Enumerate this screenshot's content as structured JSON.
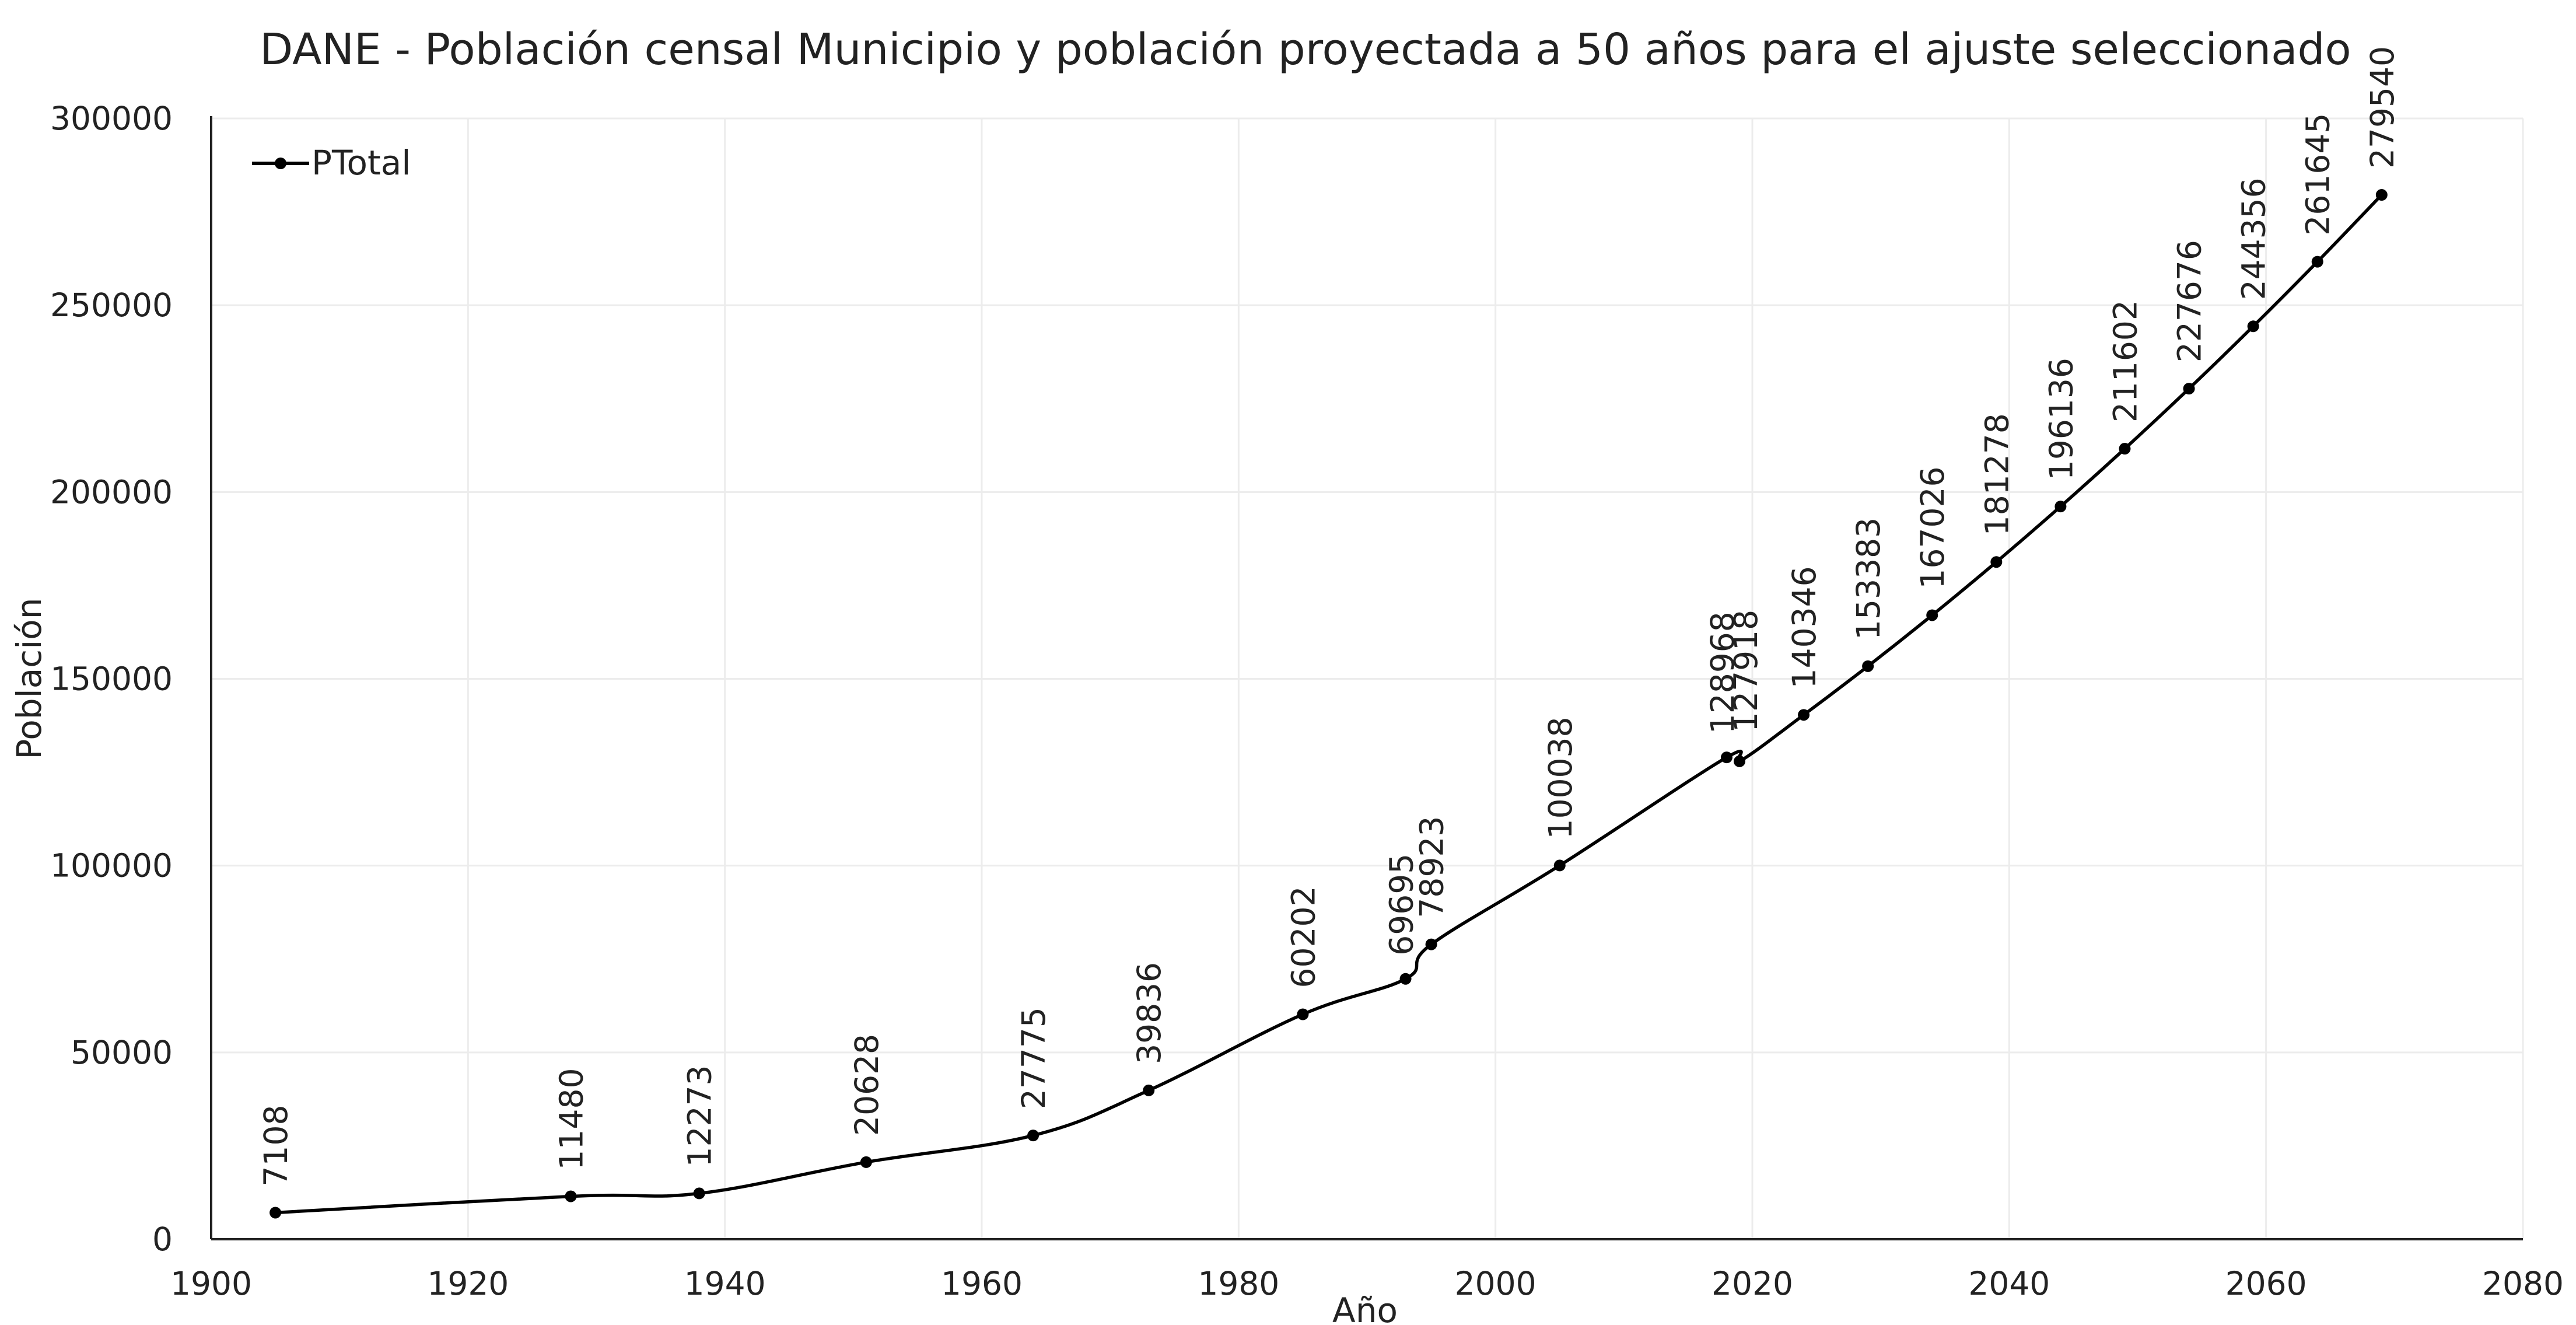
{
  "chart_data": {
    "type": "line",
    "title": "DANE - Población censal Municipio y población proyectada a 50 años para el ajuste seleccionado",
    "xlabel": "Año",
    "ylabel": "Población",
    "xlim": [
      1900,
      2080
    ],
    "ylim": [
      0,
      300000
    ],
    "x_ticks": [
      "1900",
      "1920",
      "1940",
      "1960",
      "1980",
      "2000",
      "2020",
      "2040",
      "2060",
      "2080"
    ],
    "y_ticks": [
      "0",
      "50000",
      "100000",
      "150000",
      "200000",
      "250000",
      "300000"
    ],
    "grid": true,
    "legend_position": "top-left",
    "series": [
      {
        "name": "PTotal",
        "color": "#000000",
        "x": [
          1905,
          1928,
          1938,
          1951,
          1964,
          1973,
          1985,
          1993,
          1995,
          2005,
          2018,
          2019,
          2024,
          2029,
          2034,
          2039,
          2044,
          2049,
          2054,
          2059,
          2064,
          2069
        ],
        "values": [
          7108,
          11480,
          12273,
          20628,
          27775,
          39836,
          60202,
          69695,
          78923,
          100038,
          128968,
          127918,
          140346,
          153383,
          167026,
          181278,
          196136,
          211602,
          227676,
          244356,
          261645,
          279540
        ],
        "labels": [
          "7108",
          "11480",
          "12273",
          "20628",
          "27775",
          "39836",
          "60202",
          "69695",
          "78923",
          "100038",
          "128968",
          "127918",
          "140346",
          "153383",
          "167026",
          "181278",
          "196136",
          "211602",
          "227676",
          "244356",
          "261645",
          "279540"
        ]
      }
    ]
  }
}
